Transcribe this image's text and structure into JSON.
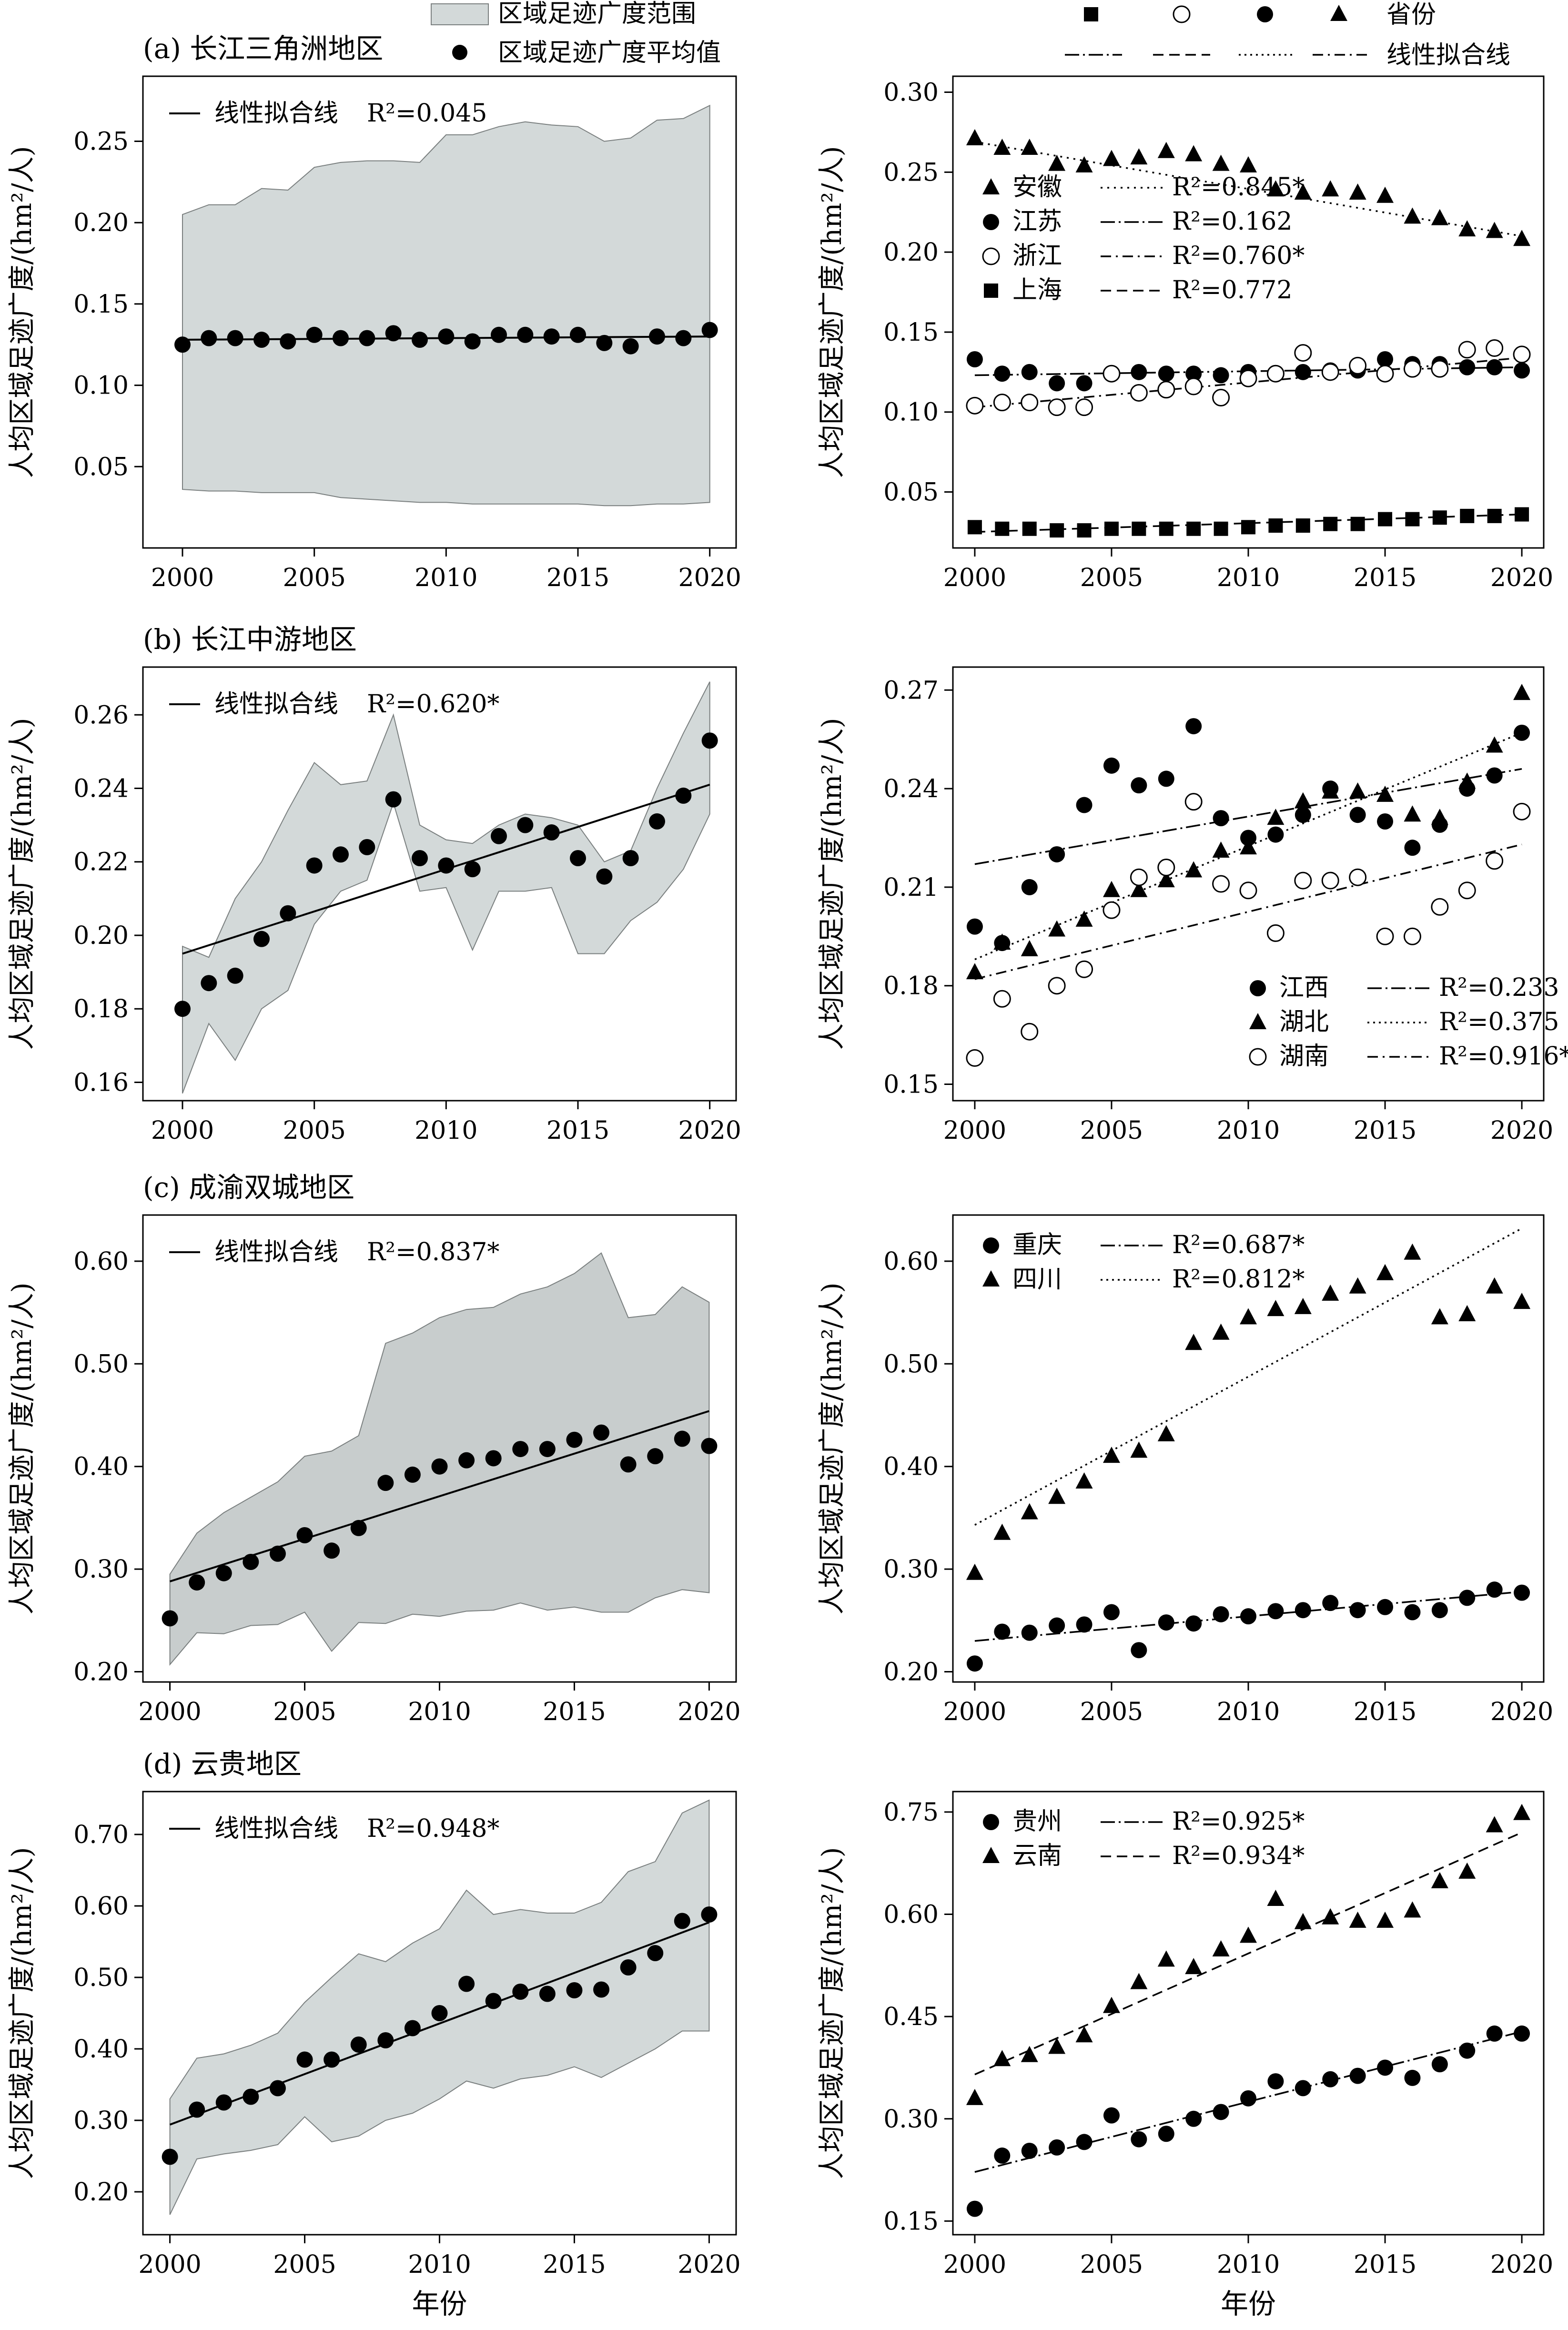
{
  "legend_top_left": {
    "range_label": "区域足迹广度范围",
    "mean_label": "区域足迹广度平均值"
  },
  "legend_top_right": {
    "province_label": "省份",
    "fit_label": "线性拟合线"
  },
  "fit_line_label": "线性拟合线",
  "y_axis_label": "人均区域足迹广度/(hm²/人)",
  "x_axis_label": "年份",
  "colors": {
    "band": "#d3d9d9",
    "band_c": "#c8cdcd",
    "marker": "#000000"
  },
  "chart_data": [
    {
      "type": "area",
      "panel": "a-left",
      "title": "(a) 长江三角洲地区",
      "xlabel": "",
      "ylabel": "人均区域足迹广度/(hm²/人)",
      "xlim": [
        1998.5,
        2021
      ],
      "ylim": [
        0.0,
        0.29
      ],
      "xticks": [
        2000,
        2005,
        2010,
        2015,
        2020
      ],
      "yticks": [
        0.05,
        0.1,
        0.15,
        0.2,
        0.25
      ],
      "ytick_labels": [
        "0.05",
        "0.10",
        "0.15",
        "0.20",
        "0.25"
      ],
      "x": [
        2000,
        2001,
        2002,
        2003,
        2004,
        2005,
        2006,
        2007,
        2008,
        2009,
        2010,
        2011,
        2012,
        2013,
        2014,
        2015,
        2016,
        2017,
        2018,
        2019,
        2020
      ],
      "band_upper": [
        0.205,
        0.211,
        0.211,
        0.221,
        0.22,
        0.234,
        0.237,
        0.238,
        0.238,
        0.237,
        0.254,
        0.254,
        0.259,
        0.262,
        0.26,
        0.259,
        0.25,
        0.252,
        0.263,
        0.264,
        0.272
      ],
      "band_lower": [
        0.036,
        0.035,
        0.035,
        0.034,
        0.034,
        0.034,
        0.031,
        0.03,
        0.029,
        0.028,
        0.028,
        0.027,
        0.027,
        0.027,
        0.027,
        0.027,
        0.026,
        0.026,
        0.027,
        0.027,
        0.028
      ],
      "mean": [
        0.125,
        0.129,
        0.129,
        0.128,
        0.127,
        0.131,
        0.129,
        0.129,
        0.132,
        0.128,
        0.13,
        0.127,
        0.131,
        0.131,
        0.13,
        0.131,
        0.126,
        0.124,
        0.13,
        0.129,
        0.134
      ],
      "fit": {
        "x": [
          2000,
          2020
        ],
        "y": [
          0.128,
          0.13
        ],
        "r2": "R²=0.045"
      }
    },
    {
      "type": "scatter",
      "panel": "a-right",
      "xlim": [
        1999.2,
        2020.8
      ],
      "ylim": [
        0.015,
        0.31
      ],
      "xticks": [
        2000,
        2005,
        2010,
        2015,
        2020
      ],
      "yticks": [
        0.05,
        0.1,
        0.15,
        0.2,
        0.25,
        0.3
      ],
      "ytick_labels": [
        "0.05",
        "0.10",
        "0.15",
        "0.20",
        "0.25",
        "0.30"
      ],
      "x": [
        2000,
        2001,
        2002,
        2003,
        2004,
        2005,
        2006,
        2007,
        2008,
        2009,
        2010,
        2011,
        2012,
        2013,
        2014,
        2015,
        2016,
        2017,
        2018,
        2019,
        2020
      ],
      "series": [
        {
          "name": "安徽",
          "marker": "triangle",
          "dash": "4,10",
          "r2": "R²=0.845*",
          "values": [
            0.271,
            0.265,
            0.265,
            0.255,
            0.254,
            0.258,
            0.259,
            0.263,
            0.261,
            0.255,
            0.254,
            0.239,
            0.237,
            0.239,
            0.237,
            0.235,
            0.222,
            0.221,
            0.214,
            0.213,
            0.208
          ],
          "fit": [
            0.269,
            0.21
          ]
        },
        {
          "name": "江苏",
          "marker": "circle",
          "dash": "30,8,4,8",
          "r2": "R²=0.162",
          "values": [
            0.133,
            0.124,
            0.125,
            0.118,
            0.118,
            0.124,
            0.125,
            0.124,
            0.124,
            0.123,
            0.125,
            0.124,
            0.125,
            0.126,
            0.126,
            0.133,
            0.13,
            0.13,
            0.128,
            0.128,
            0.126
          ],
          "fit": [
            0.123,
            0.128
          ]
        },
        {
          "name": "浙江",
          "marker": "open-circle",
          "dash": "22,10,4,10",
          "r2": "R²=0.760*",
          "values": [
            0.104,
            0.106,
            0.106,
            0.103,
            0.103,
            0.124,
            0.112,
            0.114,
            0.116,
            0.109,
            0.121,
            0.124,
            0.137,
            0.125,
            0.129,
            0.124,
            0.127,
            0.127,
            0.139,
            0.14,
            0.136
          ],
          "fit": [
            0.103,
            0.134
          ]
        },
        {
          "name": "上海",
          "marker": "square",
          "dash": "22,12",
          "r2": "R²=0.772",
          "values": [
            0.028,
            0.027,
            0.027,
            0.026,
            0.026,
            0.027,
            0.027,
            0.027,
            0.027,
            0.027,
            0.028,
            0.029,
            0.029,
            0.03,
            0.03,
            0.033,
            0.033,
            0.034,
            0.035,
            0.035,
            0.036
          ],
          "fit": [
            0.025,
            0.036
          ]
        }
      ]
    },
    {
      "type": "area",
      "panel": "b-left",
      "title": "(b) 长江中游地区",
      "xlim": [
        1998.5,
        2021
      ],
      "ylim": [
        0.155,
        0.273
      ],
      "xticks": [
        2000,
        2005,
        2010,
        2015,
        2020
      ],
      "yticks": [
        0.16,
        0.18,
        0.2,
        0.22,
        0.24,
        0.26
      ],
      "ytick_labels": [
        "0.16",
        "0.18",
        "0.20",
        "0.22",
        "0.24",
        "0.26"
      ],
      "x": [
        2000,
        2001,
        2002,
        2003,
        2004,
        2005,
        2006,
        2007,
        2008,
        2009,
        2010,
        2011,
        2012,
        2013,
        2014,
        2015,
        2016,
        2017,
        2018,
        2019,
        2020
      ],
      "band_upper": [
        0.197,
        0.194,
        0.21,
        0.22,
        0.234,
        0.247,
        0.241,
        0.242,
        0.26,
        0.23,
        0.226,
        0.225,
        0.23,
        0.233,
        0.232,
        0.23,
        0.22,
        0.223,
        0.24,
        0.255,
        0.269
      ],
      "band_lower": [
        0.157,
        0.176,
        0.166,
        0.18,
        0.185,
        0.203,
        0.212,
        0.215,
        0.236,
        0.212,
        0.213,
        0.196,
        0.212,
        0.212,
        0.213,
        0.195,
        0.195,
        0.204,
        0.209,
        0.218,
        0.233
      ],
      "mean": [
        0.18,
        0.187,
        0.189,
        0.199,
        0.206,
        0.219,
        0.222,
        0.224,
        0.237,
        0.221,
        0.219,
        0.218,
        0.227,
        0.23,
        0.228,
        0.221,
        0.216,
        0.221,
        0.231,
        0.238,
        0.253
      ],
      "fit": {
        "x": [
          2000,
          2020
        ],
        "y": [
          0.195,
          0.241
        ],
        "r2": "R²=0.620*"
      }
    },
    {
      "type": "scatter",
      "panel": "b-right",
      "xlim": [
        1999.2,
        2020.8
      ],
      "ylim": [
        0.145,
        0.277
      ],
      "xticks": [
        2000,
        2005,
        2010,
        2015,
        2020
      ],
      "yticks": [
        0.15,
        0.18,
        0.21,
        0.24,
        0.27
      ],
      "ytick_labels": [
        "0.15",
        "0.18",
        "0.21",
        "0.24",
        "0.27"
      ],
      "x": [
        2000,
        2001,
        2002,
        2003,
        2004,
        2005,
        2006,
        2007,
        2008,
        2009,
        2010,
        2011,
        2012,
        2013,
        2014,
        2015,
        2016,
        2017,
        2018,
        2019,
        2020
      ],
      "series": [
        {
          "name": "江西",
          "marker": "circle",
          "dash": "30,8,4,8",
          "r2": "R²=0.233",
          "values": [
            0.198,
            0.193,
            0.21,
            0.22,
            0.235,
            0.247,
            0.241,
            0.243,
            0.259,
            0.231,
            0.225,
            0.226,
            0.232,
            0.24,
            0.232,
            0.23,
            0.222,
            0.229,
            0.24,
            0.244,
            0.257
          ],
          "fit": [
            0.217,
            0.246
          ]
        },
        {
          "name": "湖北",
          "marker": "triangle",
          "dash": "4,8",
          "r2": "R²=0.375",
          "values": [
            0.184,
            0.193,
            0.191,
            0.197,
            0.2,
            0.209,
            0.209,
            0.212,
            0.215,
            0.221,
            0.222,
            0.231,
            0.236,
            0.239,
            0.239,
            0.238,
            0.232,
            0.231,
            0.242,
            0.253,
            0.269
          ],
          "fit": [
            0.188,
            0.257
          ]
        },
        {
          "name": "湖南",
          "marker": "open-circle",
          "dash": "22,10,4,10",
          "r2": "R²=0.916*",
          "values": [
            0.158,
            0.176,
            0.166,
            0.18,
            0.185,
            0.203,
            0.213,
            0.216,
            0.236,
            0.211,
            0.209,
            0.196,
            0.212,
            0.212,
            0.213,
            0.195,
            0.195,
            0.204,
            0.209,
            0.218,
            0.233
          ],
          "fit": [
            0.182,
            0.223
          ]
        }
      ]
    },
    {
      "type": "area",
      "panel": "c-left",
      "title": "(c) 成渝双城地区",
      "xlim": [
        1999,
        2021
      ],
      "ylim": [
        0.19,
        0.645
      ],
      "xticks": [
        2000,
        2005,
        2010,
        2015,
        2020
      ],
      "yticks": [
        0.2,
        0.3,
        0.4,
        0.5,
        0.6
      ],
      "ytick_labels": [
        "0.20",
        "0.30",
        "0.40",
        "0.50",
        "0.60"
      ],
      "x": [
        2000,
        2001,
        2002,
        2003,
        2004,
        2005,
        2006,
        2007,
        2008,
        2009,
        2010,
        2011,
        2012,
        2013,
        2014,
        2015,
        2016,
        2017,
        2018,
        2019,
        2020
      ],
      "band_upper": [
        0.295,
        0.335,
        0.355,
        0.37,
        0.385,
        0.41,
        0.415,
        0.43,
        0.52,
        0.53,
        0.545,
        0.553,
        0.555,
        0.568,
        0.575,
        0.588,
        0.608,
        0.545,
        0.548,
        0.575,
        0.56
      ],
      "band_lower": [
        0.207,
        0.238,
        0.237,
        0.245,
        0.246,
        0.258,
        0.22,
        0.248,
        0.247,
        0.256,
        0.254,
        0.259,
        0.26,
        0.267,
        0.26,
        0.263,
        0.258,
        0.258,
        0.272,
        0.28,
        0.277
      ],
      "mean": [
        0.252,
        0.287,
        0.296,
        0.307,
        0.315,
        0.333,
        0.318,
        0.34,
        0.384,
        0.392,
        0.4,
        0.406,
        0.408,
        0.417,
        0.417,
        0.426,
        0.433,
        0.402,
        0.41,
        0.427,
        0.42
      ],
      "fit": {
        "x": [
          2000,
          2020
        ],
        "y": [
          0.288,
          0.454
        ],
        "r2": "R²=0.837*"
      }
    },
    {
      "type": "scatter",
      "panel": "c-right",
      "xlim": [
        1999.2,
        2020.8
      ],
      "ylim": [
        0.19,
        0.645
      ],
      "xticks": [
        2000,
        2005,
        2010,
        2015,
        2020
      ],
      "yticks": [
        0.2,
        0.3,
        0.4,
        0.5,
        0.6
      ],
      "ytick_labels": [
        "0.20",
        "0.30",
        "0.40",
        "0.50",
        "0.60"
      ],
      "x": [
        2000,
        2001,
        2002,
        2003,
        2004,
        2005,
        2006,
        2007,
        2008,
        2009,
        2010,
        2011,
        2012,
        2013,
        2014,
        2015,
        2016,
        2017,
        2018,
        2019,
        2020
      ],
      "series": [
        {
          "name": "重庆",
          "marker": "circle",
          "dash": "30,8,4,8",
          "r2": "R²=0.687*",
          "values": [
            0.208,
            0.239,
            0.238,
            0.245,
            0.246,
            0.258,
            0.221,
            0.248,
            0.247,
            0.256,
            0.254,
            0.259,
            0.26,
            0.267,
            0.26,
            0.263,
            0.258,
            0.26,
            0.272,
            0.28,
            0.277
          ],
          "fit": [
            0.23,
            0.278
          ]
        },
        {
          "name": "四川",
          "marker": "triangle",
          "dash": "4,8",
          "r2": "R²=0.812*",
          "values": [
            0.296,
            0.335,
            0.355,
            0.37,
            0.385,
            0.41,
            0.415,
            0.431,
            0.52,
            0.53,
            0.545,
            0.553,
            0.555,
            0.568,
            0.575,
            0.588,
            0.608,
            0.545,
            0.548,
            0.575,
            0.56
          ],
          "fit": [
            0.343,
            0.632
          ]
        }
      ]
    },
    {
      "type": "area",
      "panel": "d-left",
      "title": "(d) 云贵地区",
      "xlabel": "年份",
      "xlim": [
        1999,
        2021
      ],
      "ylim": [
        0.14,
        0.76
      ],
      "xticks": [
        2000,
        2005,
        2010,
        2015,
        2020
      ],
      "yticks": [
        0.2,
        0.3,
        0.4,
        0.5,
        0.6,
        0.7
      ],
      "ytick_labels": [
        "0.20",
        "0.30",
        "0.40",
        "0.50",
        "0.60",
        "0.70"
      ],
      "x": [
        2000,
        2001,
        2002,
        2003,
        2004,
        2005,
        2006,
        2007,
        2008,
        2009,
        2010,
        2011,
        2012,
        2013,
        2014,
        2015,
        2016,
        2017,
        2018,
        2019,
        2020
      ],
      "band_upper": [
        0.33,
        0.387,
        0.393,
        0.405,
        0.422,
        0.465,
        0.5,
        0.533,
        0.522,
        0.548,
        0.568,
        0.622,
        0.588,
        0.595,
        0.59,
        0.59,
        0.605,
        0.648,
        0.662,
        0.73,
        0.748
      ],
      "band_lower": [
        0.168,
        0.246,
        0.253,
        0.258,
        0.266,
        0.305,
        0.27,
        0.278,
        0.3,
        0.31,
        0.33,
        0.355,
        0.345,
        0.358,
        0.363,
        0.375,
        0.36,
        0.38,
        0.4,
        0.425,
        0.425
      ],
      "mean": [
        0.249,
        0.315,
        0.325,
        0.333,
        0.345,
        0.385,
        0.385,
        0.406,
        0.412,
        0.429,
        0.45,
        0.491,
        0.467,
        0.48,
        0.477,
        0.482,
        0.483,
        0.514,
        0.534,
        0.579,
        0.588
      ],
      "fit": {
        "x": [
          2000,
          2020
        ],
        "y": [
          0.294,
          0.577
        ],
        "r2": "R²=0.948*"
      }
    },
    {
      "type": "scatter",
      "panel": "d-right",
      "xlabel": "年份",
      "xlim": [
        1999.2,
        2020.8
      ],
      "ylim": [
        0.13,
        0.78
      ],
      "xticks": [
        2000,
        2005,
        2010,
        2015,
        2020
      ],
      "yticks": [
        0.15,
        0.3,
        0.45,
        0.6,
        0.75
      ],
      "ytick_labels": [
        "0.15",
        "0.30",
        "0.45",
        "0.60",
        "0.75"
      ],
      "x": [
        2000,
        2001,
        2002,
        2003,
        2004,
        2005,
        2006,
        2007,
        2008,
        2009,
        2010,
        2011,
        2012,
        2013,
        2014,
        2015,
        2016,
        2017,
        2018,
        2019,
        2020
      ],
      "series": [
        {
          "name": "贵州",
          "marker": "circle",
          "dash": "30,8,4,8",
          "r2": "R²=0.925*",
          "values": [
            0.168,
            0.246,
            0.253,
            0.258,
            0.266,
            0.305,
            0.27,
            0.278,
            0.3,
            0.31,
            0.33,
            0.355,
            0.345,
            0.358,
            0.363,
            0.375,
            0.36,
            0.38,
            0.4,
            0.425,
            0.425
          ],
          "fit": [
            0.222,
            0.428
          ]
        },
        {
          "name": "云南",
          "marker": "triangle",
          "dash": "22,12",
          "r2": "R²=0.934*",
          "values": [
            0.33,
            0.387,
            0.393,
            0.405,
            0.422,
            0.465,
            0.5,
            0.533,
            0.522,
            0.548,
            0.568,
            0.622,
            0.588,
            0.595,
            0.59,
            0.59,
            0.605,
            0.648,
            0.662,
            0.73,
            0.748
          ],
          "fit": [
            0.365,
            0.72
          ]
        }
      ]
    }
  ]
}
